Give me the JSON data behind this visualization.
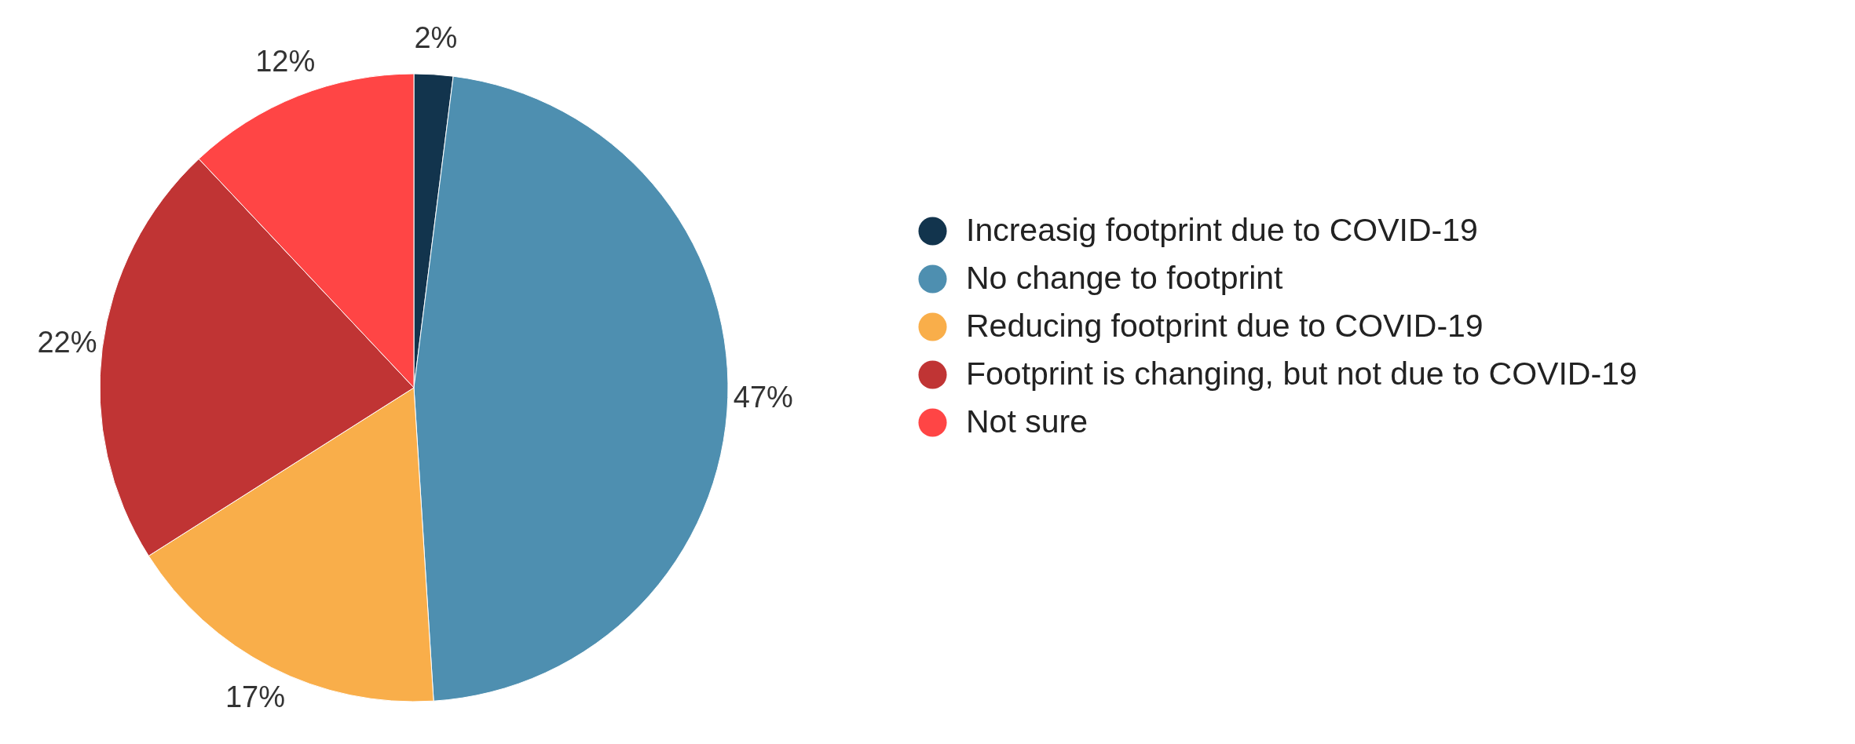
{
  "chart_data": {
    "type": "pie",
    "categories": [
      "Increasig footprint due to COVID-19",
      "No change to footprint",
      "Reducing footprint due to COVID-19",
      "Footprint is changing, but not due to COVID-19",
      "Not sure"
    ],
    "values": [
      2,
      47,
      17,
      22,
      12
    ],
    "colors": [
      "#12344d",
      "#4e8fb0",
      "#f9ae4a",
      "#c03434",
      "#ff4545"
    ],
    "value_labels": [
      "2%",
      "47%",
      "17%",
      "22%",
      "12%"
    ],
    "legend": "right"
  }
}
